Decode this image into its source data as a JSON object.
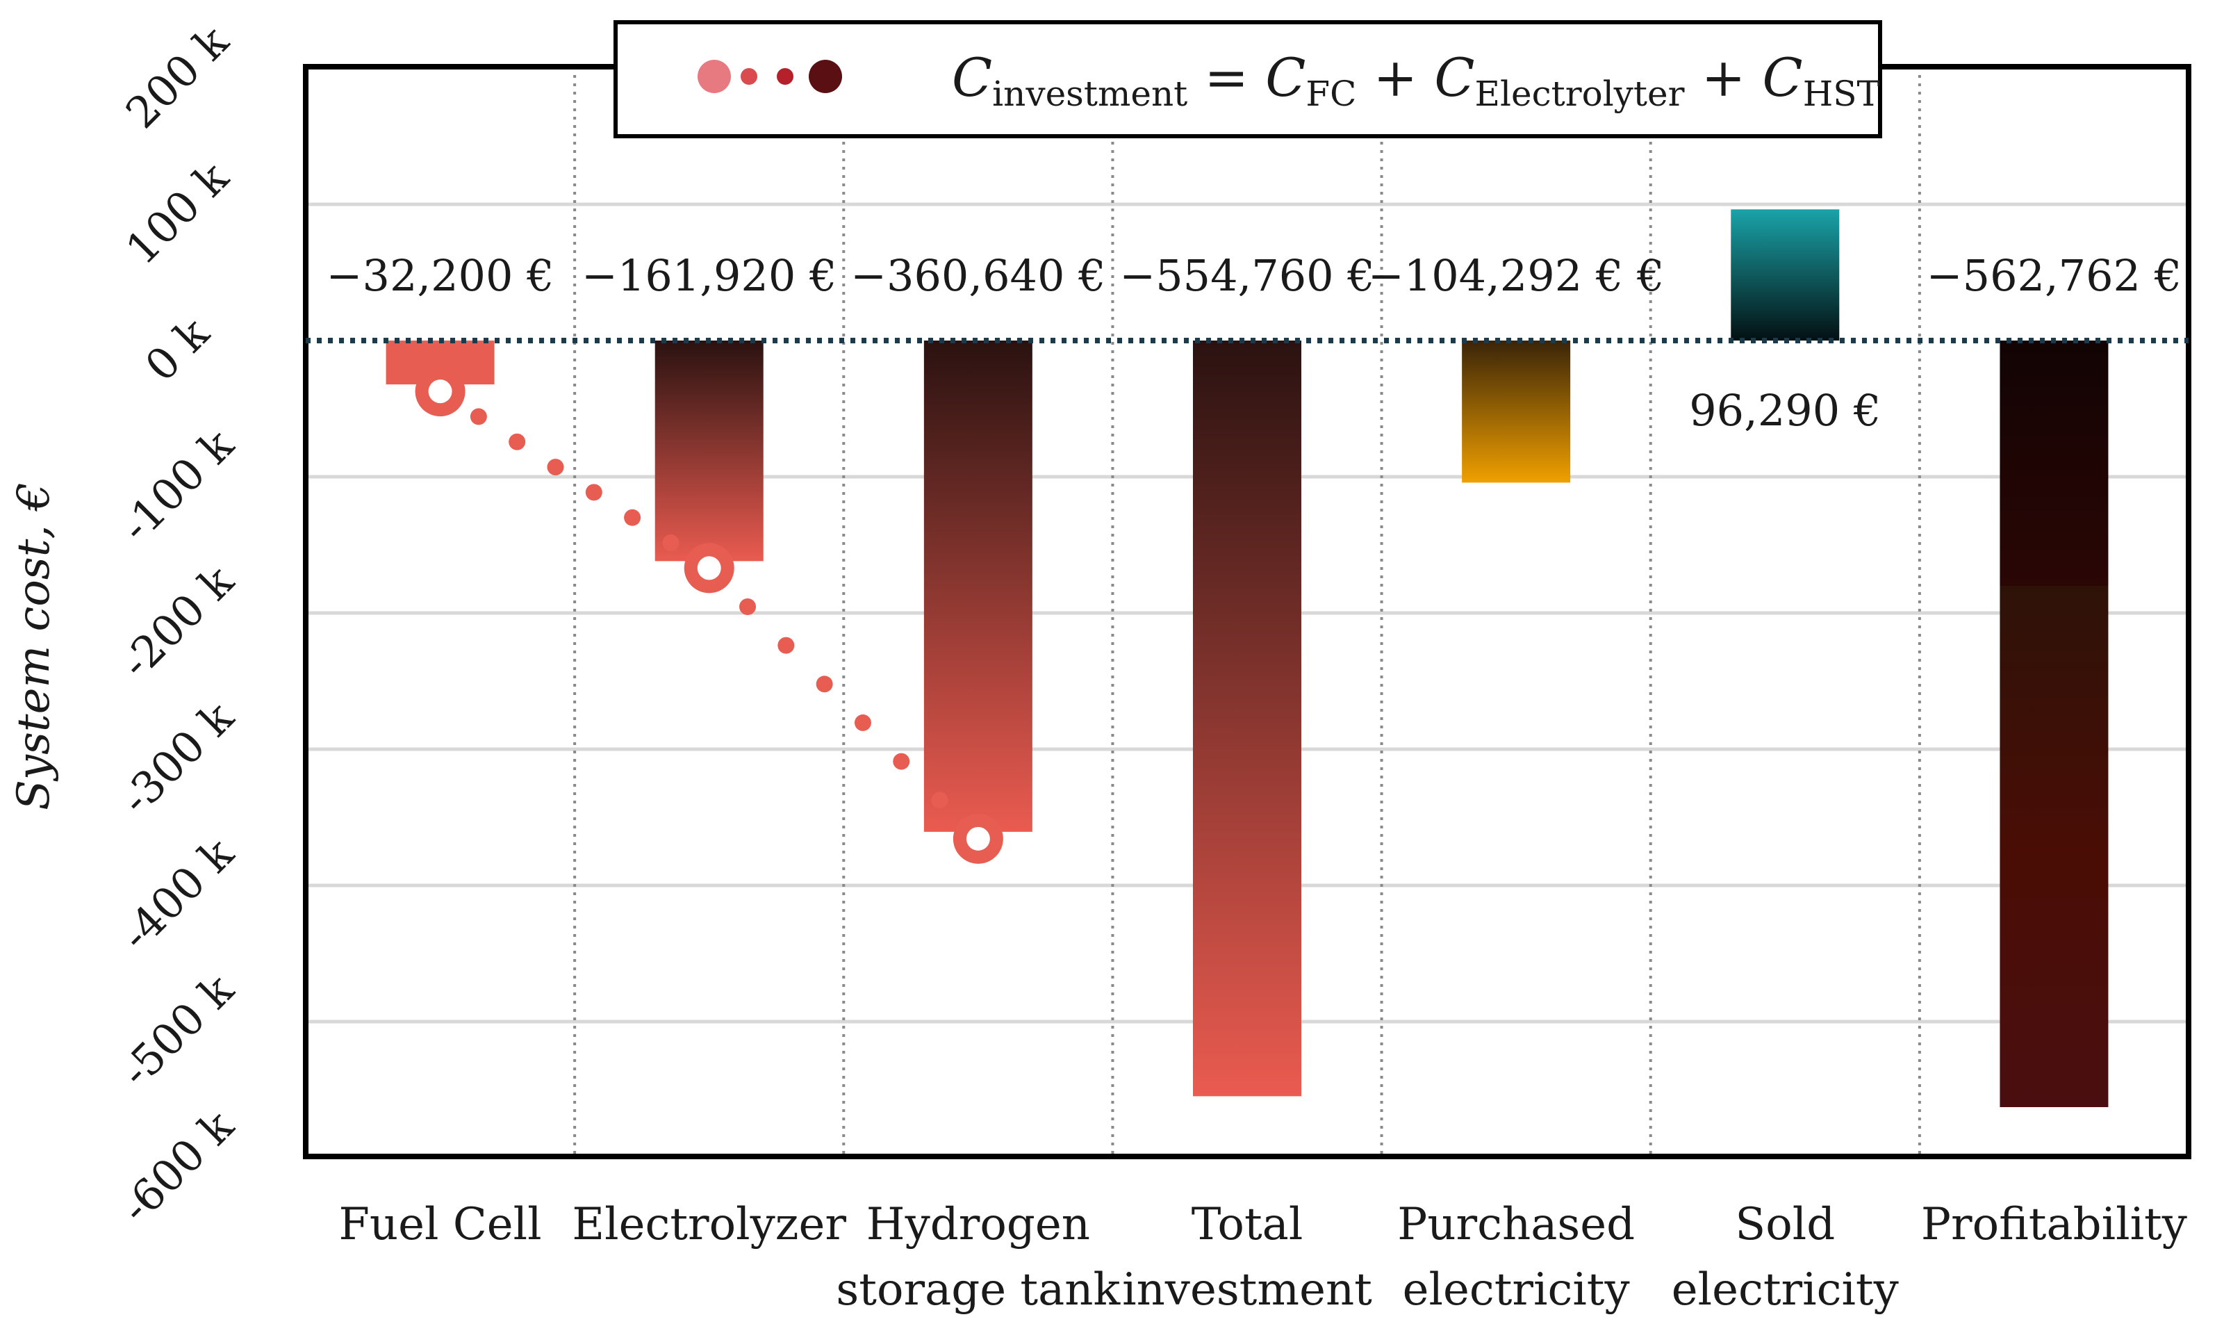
{
  "chart_data": {
    "type": "bar",
    "ylabel": "System cost, €",
    "xlabel": "",
    "ylim": [
      -600000,
      200000
    ],
    "yticks": [
      {
        "value": 200000,
        "label": "200 k"
      },
      {
        "value": 100000,
        "label": "100 k"
      },
      {
        "value": 0,
        "label": "0 k"
      },
      {
        "value": -100000,
        "label": "-100 k"
      },
      {
        "value": -200000,
        "label": "-200 k"
      },
      {
        "value": -300000,
        "label": "-300 k"
      },
      {
        "value": -400000,
        "label": "-400 k"
      },
      {
        "value": -500000,
        "label": "-500 k"
      },
      {
        "value": -600000,
        "label": "-600 k"
      }
    ],
    "categories": [
      [
        "Fuel Cell"
      ],
      [
        "Electrolyzer"
      ],
      [
        "Hydrogen",
        "storage tank"
      ],
      [
        "Total",
        "investment"
      ],
      [
        "Purchased",
        "electricity"
      ],
      [
        "Sold",
        "electricity"
      ],
      [
        "Profitability"
      ]
    ],
    "values": [
      -32200,
      -161920,
      -360640,
      -554760,
      -104292,
      96290,
      -562762
    ],
    "value_labels": [
      "−32,200 €",
      "−161,920 €",
      "−360,640 €",
      "−554,760 €",
      "−104,292 € €",
      "96,290 €",
      "−562,762 €"
    ],
    "label_positions": [
      "above",
      "above",
      "above",
      "above",
      "above",
      "below",
      "above"
    ],
    "colors": {
      "fuel_cell": "#e85d52",
      "investment_dark": "#2a1210",
      "investment_light": "#ea5b50",
      "purchased_top": "#3a2408",
      "purchased_bottom": "#f0a000",
      "sold_top": "#1aa3a8",
      "sold_bottom": "#031012",
      "profit_dark": "#120404",
      "profit_mid": "#4a0d05",
      "marker_light": "#e77a80",
      "marker_dark": "#5a0f12",
      "zero_line": "#1c3a4a"
    },
    "cumulative_trace": {
      "description_values": [
        -32200,
        -161920,
        -360640
      ]
    },
    "legend": {
      "position": "top-center",
      "equation": {
        "lhs_main": "C",
        "lhs_sub": "investment",
        "eq": " = ",
        "t1_main": "C",
        "t1_sub": "FC",
        "plus1": " + ",
        "t2_main": "C",
        "t2_sub": "Electrolyter",
        "plus2": " + ",
        "t3_main": "C",
        "t3_sub": "HST"
      }
    }
  }
}
